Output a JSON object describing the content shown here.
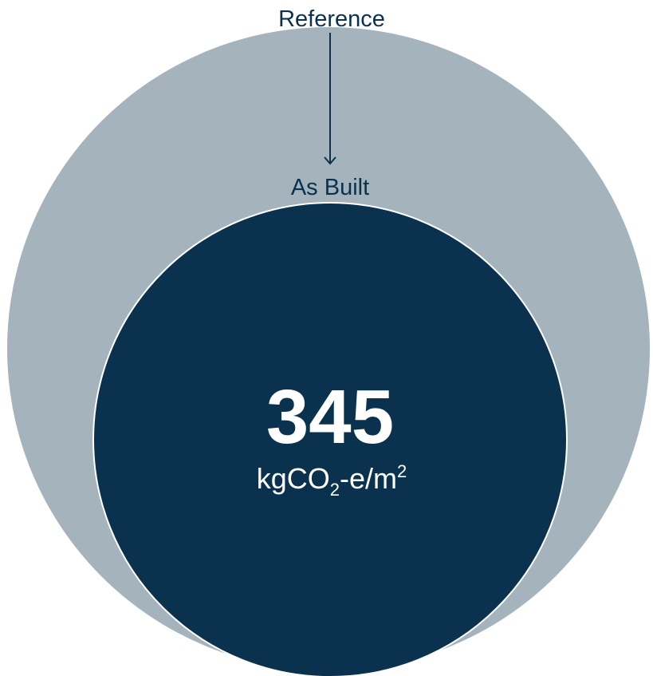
{
  "chart_data": {
    "type": "nested-circle",
    "title": "",
    "series": [
      {
        "name": "Reference",
        "color": "#a4b3bc"
      },
      {
        "name": "As Built",
        "value": 345,
        "unit": "kgCO2-e/m2",
        "color": "#0a314e"
      }
    ],
    "labels": {
      "outer": "Reference",
      "inner": "As Built",
      "value": "345",
      "unit_prefix": "kgCO",
      "unit_sub": "2",
      "unit_mid": "-e/m",
      "unit_sup": "2"
    },
    "colors": {
      "label": "#0a314e",
      "value_text": "#ffffff",
      "outline": "#ffffff"
    }
  }
}
